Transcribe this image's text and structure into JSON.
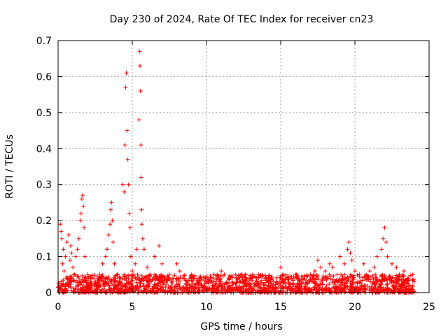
{
  "chart_data": {
    "type": "scatter",
    "title": "Day 230 of 2024, Rate Of TEC Index for receiver cn23",
    "xlabel": "GPS time / hours",
    "ylabel": "ROTI / TECUs",
    "xlim": [
      0,
      25
    ],
    "ylim": [
      0,
      0.7
    ],
    "xticks": [
      0,
      5,
      10,
      15,
      20,
      25
    ],
    "xtick_labels": [
      "0",
      "5",
      "10",
      "15",
      "20",
      "25"
    ],
    "yticks": [
      0,
      0.1,
      0.2,
      0.3,
      0.4,
      0.5,
      0.6,
      0.7
    ],
    "ytick_labels": [
      "0",
      "0.1",
      "0.2",
      "0.3",
      "0.4",
      "0.5",
      "0.6",
      "0.7"
    ],
    "grid": true,
    "marker": "+",
    "color": "#ff0000",
    "series": [
      {
        "name": "ROTI",
        "x": [
          0.1,
          0.15,
          0.2,
          0.25,
          0.3,
          0.35,
          0.4,
          0.5,
          0.6,
          0.7,
          0.8,
          0.85,
          0.9,
          1.0,
          1.1,
          1.2,
          1.3,
          1.4,
          1.5,
          1.55,
          1.6,
          1.65,
          1.7,
          1.75,
          1.8,
          2.0,
          2.2,
          2.5,
          2.8,
          3.0,
          3.2,
          3.3,
          3.4,
          3.5,
          3.55,
          3.6,
          3.65,
          3.7,
          3.8,
          4.0,
          4.2,
          4.35,
          4.45,
          4.5,
          4.55,
          4.6,
          4.65,
          4.7,
          4.75,
          4.8,
          4.85,
          4.9,
          5.0,
          5.1,
          5.2,
          5.3,
          5.45,
          5.5,
          5.52,
          5.55,
          5.58,
          5.6,
          5.62,
          5.65,
          5.7,
          5.8,
          6.0,
          6.2,
          6.5,
          6.8,
          7.0,
          7.5,
          8.0,
          8.2,
          8.5,
          9.0,
          9.5,
          10.0,
          10.5,
          11.0,
          11.2,
          11.5,
          12.0,
          12.5,
          13.0,
          13.5,
          14.0,
          14.5,
          15.0,
          15.5,
          16.0,
          16.5,
          17.0,
          17.3,
          17.5,
          17.7,
          18.0,
          18.3,
          18.5,
          18.8,
          19.0,
          19.3,
          19.5,
          19.6,
          19.7,
          19.8,
          20.0,
          20.3,
          20.6,
          21.0,
          21.3,
          21.5,
          21.8,
          21.9,
          22.0,
          22.1,
          22.2,
          22.5,
          22.8,
          23.0,
          23.3,
          23.6,
          23.9,
          24.0
        ],
        "y": [
          0.01,
          0.19,
          0.17,
          0.15,
          0.08,
          0.12,
          0.06,
          0.1,
          0.14,
          0.16,
          0.09,
          0.13,
          0.11,
          0.07,
          0.05,
          0.1,
          0.12,
          0.15,
          0.2,
          0.22,
          0.26,
          0.27,
          0.24,
          0.18,
          0.1,
          0.05,
          0.04,
          0.03,
          0.05,
          0.08,
          0.1,
          0.12,
          0.16,
          0.19,
          0.23,
          0.25,
          0.2,
          0.14,
          0.08,
          0.05,
          0.04,
          0.3,
          0.28,
          0.41,
          0.57,
          0.61,
          0.45,
          0.37,
          0.3,
          0.22,
          0.18,
          0.1,
          0.06,
          0.05,
          0.08,
          0.12,
          0.48,
          0.67,
          0.63,
          0.56,
          0.41,
          0.32,
          0.23,
          0.19,
          0.15,
          0.12,
          0.07,
          0.05,
          0.1,
          0.13,
          0.08,
          0.05,
          0.08,
          0.06,
          0.04,
          0.05,
          0.04,
          0.03,
          0.05,
          0.06,
          0.05,
          0.04,
          0.04,
          0.03,
          0.04,
          0.05,
          0.04,
          0.03,
          0.07,
          0.04,
          0.05,
          0.04,
          0.05,
          0.06,
          0.09,
          0.07,
          0.06,
          0.08,
          0.07,
          0.05,
          0.1,
          0.08,
          0.12,
          0.14,
          0.11,
          0.09,
          0.06,
          0.05,
          0.08,
          0.06,
          0.07,
          0.1,
          0.12,
          0.15,
          0.18,
          0.14,
          0.1,
          0.08,
          0.07,
          0.05,
          0.06,
          0.04,
          0.05,
          0.03
        ]
      }
    ],
    "band": {
      "note": "dense low-level noise band of markers",
      "x_range": [
        0,
        24
      ],
      "y_range": [
        0.0,
        0.05
      ]
    }
  }
}
